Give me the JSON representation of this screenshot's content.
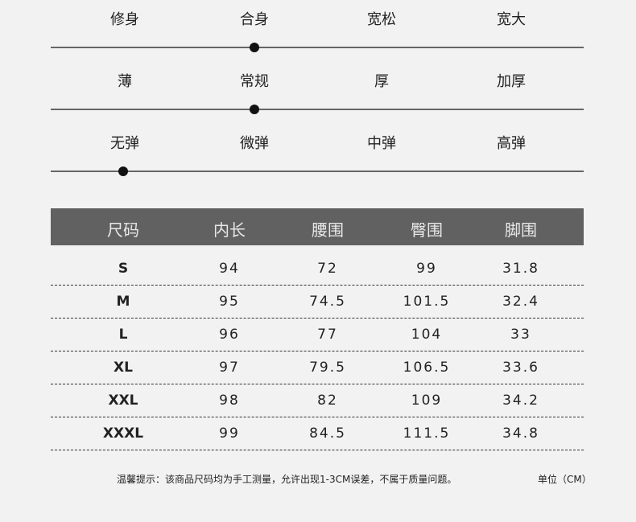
{
  "scales": [
    {
      "options": [
        "修身",
        "合身",
        "宽松",
        "宽大"
      ],
      "selected_index": 1
    },
    {
      "options": [
        "薄",
        "常规",
        "厚",
        "加厚"
      ],
      "selected_index": 1
    },
    {
      "options": [
        "无弹",
        "微弹",
        "中弹",
        "高弹"
      ],
      "selected_index": 0
    }
  ],
  "table": {
    "headers": [
      "尺码",
      "内长",
      "腰围",
      "臀围",
      "脚围"
    ],
    "rows": [
      [
        "S",
        "94",
        "72",
        "99",
        "31.8"
      ],
      [
        "M",
        "95",
        "74.5",
        "101.5",
        "32.4"
      ],
      [
        "L",
        "96",
        "77",
        "104",
        "33"
      ],
      [
        "XL",
        "97",
        "79.5",
        "106.5",
        "33.6"
      ],
      [
        "XXL",
        "98",
        "82",
        "109",
        "34.2"
      ],
      [
        "XXXL",
        "99",
        "84.5",
        "111.5",
        "34.8"
      ]
    ]
  },
  "footer": {
    "tip": "温馨提示：该商品尺码均为手工测量，允许出现1-3CM误差，不属于质量问题。",
    "unit": "单位（CM）"
  },
  "colors": {
    "header_bg": "#616161",
    "background": "#f2f2f2"
  }
}
